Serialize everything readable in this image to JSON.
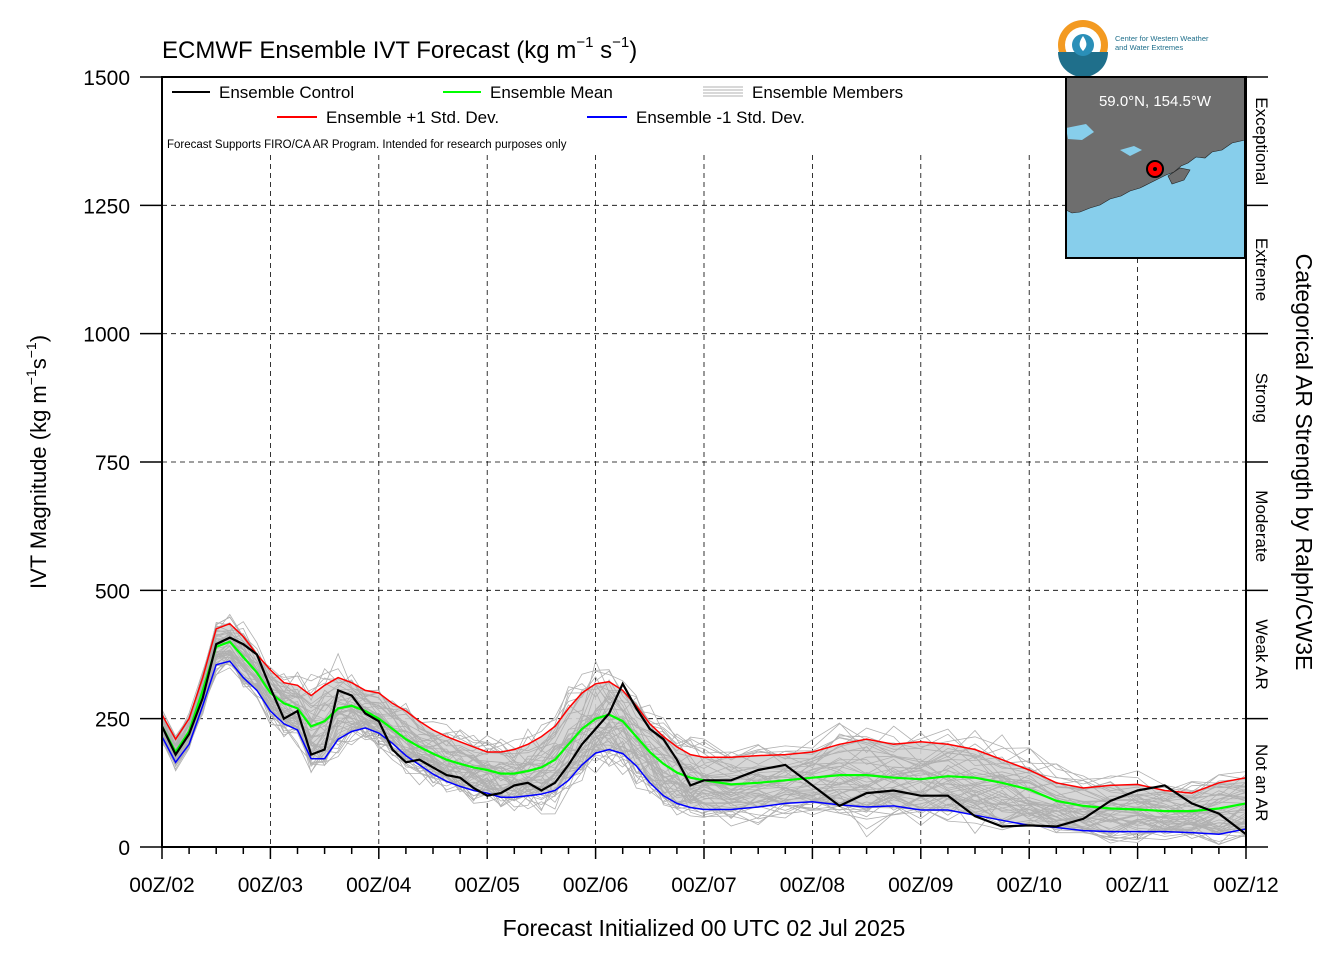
{
  "header": {
    "title_main": "ECMWF Ensemble IVT Forecast (kg m",
    "title_exp1": "−1",
    "title_mid": " s",
    "title_exp2": "−1",
    "title_end": ")"
  },
  "logo": {
    "line1": "Center for Western Weather",
    "line2": "and Water Extremes"
  },
  "legend": {
    "control": "Ensemble Control",
    "mean": "Ensemble Mean",
    "members": "Ensemble Members",
    "plus_std": "Ensemble +1 Std. Dev.",
    "minus_std": "Ensemble -1 Std. Dev.",
    "note": "Forecast Supports FIRO/CA AR Program. Intended for research purposes only"
  },
  "inset_map": {
    "location": "59.0°N, 154.5°W",
    "land_color": "#6e6e6e",
    "water_color": "#87ceeb",
    "marker_color": "#ff0000"
  },
  "axes": {
    "ylabel_main": "IVT Magnitude (kg m",
    "ylabel_exp1": "−1",
    "ylabel_mid": "s",
    "ylabel_exp2": "−1",
    "ylabel_end": ")",
    "xlabel": "Forecast Initialized 00 UTC 02 Jul 2025",
    "right_label": "Categorical AR Strength by Ralph/CW3E"
  },
  "categories": [
    "Exceptional",
    "Extreme",
    "Strong",
    "Moderate",
    "Weak AR",
    "Not an AR"
  ],
  "colors": {
    "control": "#000000",
    "mean": "#00ff00",
    "plus_std": "#ff0000",
    "minus_std": "#0000ff",
    "members": "#b0b0b0",
    "spread_fill": "#d3d3d3"
  },
  "chart_data": {
    "type": "line",
    "x_unit": "days after 00Z/02 Jul 2025",
    "xlim": [
      0,
      10
    ],
    "ylim": [
      0,
      1500
    ],
    "x_ticks": [
      0,
      1,
      2,
      3,
      4,
      5,
      6,
      7,
      8,
      9,
      10
    ],
    "x_tick_labels": [
      "00Z/02",
      "00Z/03",
      "00Z/04",
      "00Z/05",
      "00Z/06",
      "00Z/07",
      "00Z/08",
      "00Z/09",
      "00Z/10",
      "00Z/11",
      "00Z/12"
    ],
    "y_ticks": [
      0,
      250,
      500,
      750,
      1000,
      1250,
      1500
    ],
    "y_tick_labels": [
      "0",
      "250",
      "500",
      "750",
      "1000",
      "1250",
      "1500"
    ],
    "category_bounds": [
      0,
      250,
      500,
      750,
      1000,
      1250,
      1500
    ],
    "grid": true,
    "x": [
      0,
      0.125,
      0.25,
      0.375,
      0.5,
      0.625,
      0.75,
      0.875,
      1.0,
      1.125,
      1.25,
      1.375,
      1.5,
      1.625,
      1.75,
      1.875,
      2.0,
      2.125,
      2.25,
      2.375,
      2.5,
      2.625,
      2.75,
      2.875,
      3.0,
      3.125,
      3.25,
      3.375,
      3.5,
      3.625,
      3.75,
      3.875,
      4.0,
      4.125,
      4.25,
      4.375,
      4.5,
      4.625,
      4.75,
      4.875,
      5.0,
      5.25,
      5.5,
      5.75,
      6.0,
      6.25,
      6.5,
      6.75,
      7.0,
      7.25,
      7.5,
      7.75,
      8.0,
      8.25,
      8.5,
      8.75,
      9.0,
      9.25,
      9.5,
      9.75,
      10.0
    ],
    "series": [
      {
        "name": "Ensemble Control",
        "values": [
          235,
          180,
          220,
          290,
          395,
          408,
          395,
          375,
          310,
          250,
          265,
          180,
          190,
          305,
          295,
          260,
          245,
          190,
          165,
          170,
          155,
          140,
          135,
          115,
          100,
          105,
          120,
          125,
          110,
          125,
          160,
          200,
          230,
          260,
          318,
          270,
          230,
          210,
          170,
          120,
          130,
          130,
          150,
          160,
          120,
          80,
          105,
          110,
          100,
          100,
          60,
          40,
          42,
          40,
          55,
          90,
          110,
          120,
          85,
          65,
          25
        ]
      },
      {
        "name": "Ensemble Mean",
        "values": [
          235,
          185,
          225,
          305,
          390,
          400,
          370,
          340,
          300,
          280,
          270,
          235,
          245,
          270,
          275,
          265,
          250,
          230,
          210,
          195,
          182,
          170,
          162,
          155,
          150,
          143,
          143,
          148,
          155,
          170,
          200,
          230,
          250,
          258,
          245,
          215,
          185,
          162,
          145,
          135,
          130,
          122,
          125,
          130,
          135,
          140,
          140,
          135,
          132,
          138,
          135,
          125,
          112,
          90,
          80,
          75,
          73,
          70,
          70,
          75,
          85
        ]
      },
      {
        "name": "Ensemble +1 Std. Dev.",
        "values": [
          258,
          210,
          250,
          330,
          425,
          435,
          410,
          375,
          345,
          320,
          315,
          295,
          315,
          330,
          320,
          305,
          300,
          280,
          265,
          245,
          228,
          215,
          205,
          195,
          185,
          185,
          190,
          200,
          215,
          235,
          270,
          300,
          318,
          322,
          305,
          275,
          240,
          215,
          195,
          180,
          175,
          175,
          178,
          180,
          185,
          200,
          210,
          200,
          205,
          200,
          190,
          170,
          150,
          125,
          115,
          120,
          122,
          110,
          105,
          125,
          135
        ]
      },
      {
        "name": "Ensemble -1 Std. Dev.",
        "values": [
          215,
          165,
          200,
          275,
          355,
          362,
          330,
          305,
          265,
          240,
          228,
          172,
          172,
          210,
          225,
          232,
          222,
          202,
          178,
          160,
          142,
          128,
          118,
          110,
          105,
          97,
          97,
          100,
          103,
          110,
          130,
          160,
          183,
          190,
          182,
          158,
          125,
          100,
          85,
          77,
          73,
          73,
          78,
          85,
          88,
          82,
          78,
          80,
          72,
          72,
          62,
          52,
          42,
          38,
          32,
          30,
          30,
          30,
          28,
          25,
          35
        ]
      }
    ],
    "members_count": 50
  }
}
